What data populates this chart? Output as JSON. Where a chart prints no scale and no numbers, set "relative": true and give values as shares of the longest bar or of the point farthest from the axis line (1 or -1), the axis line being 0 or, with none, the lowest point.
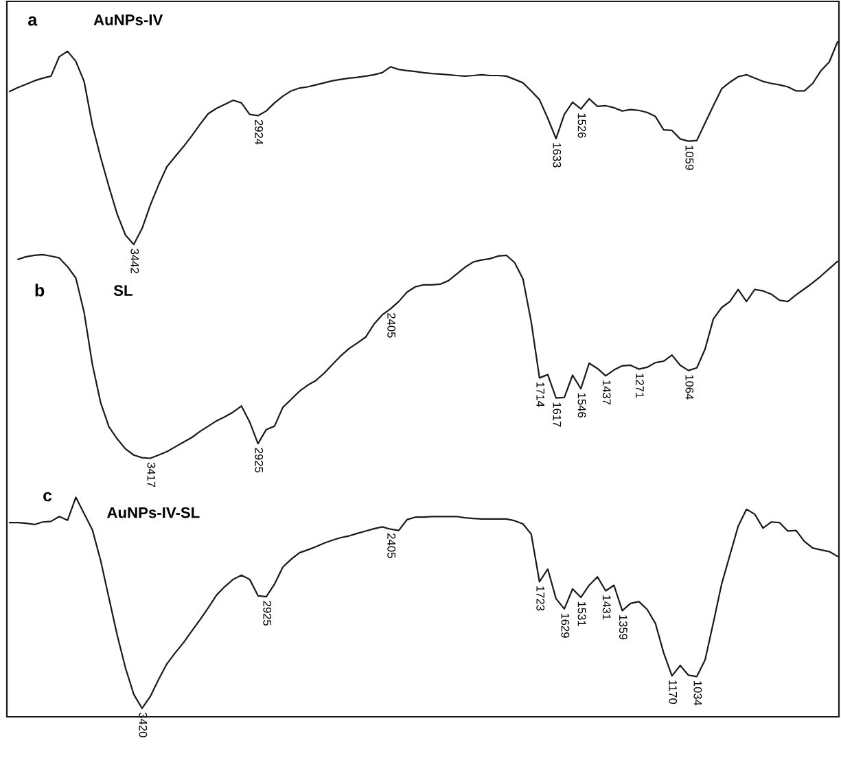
{
  "chart_data": [
    {
      "type": "line",
      "relative": true,
      "title": "AuNPs-IV",
      "tick_labels": false,
      "categories": [
        null,
        null,
        null,
        null,
        null,
        null,
        null,
        null,
        null,
        null,
        null,
        null,
        null,
        null,
        null,
        null,
        null,
        null,
        null,
        null,
        null,
        null,
        null,
        null,
        null,
        null,
        null,
        null,
        null,
        null,
        null,
        null,
        null,
        null,
        null,
        null,
        null,
        null,
        null,
        null,
        null,
        null,
        null,
        null,
        null,
        null,
        null,
        null,
        null,
        null,
        null,
        null,
        null,
        null,
        null,
        null,
        null,
        null,
        null,
        null,
        null,
        null,
        null,
        null,
        null,
        null,
        null,
        null,
        null,
        null,
        null,
        null,
        null,
        null,
        null,
        null,
        null,
        null,
        null,
        null,
        null,
        null,
        null,
        null,
        null,
        null,
        null,
        null,
        null,
        null,
        null,
        null,
        null,
        null,
        null,
        null,
        null,
        null,
        null,
        null,
        null
      ],
      "annotations": [
        "a",
        {
          "text": "3442",
          "y": 0
        },
        {
          "text": "2924",
          "y": 0.636
        },
        {
          "text": "1633",
          "y": 0.523
        },
        {
          "text": "1526",
          "y": 0.669
        },
        {
          "text": "1059",
          "y": 0.51
        }
      ],
      "series": [
        {
          "color": "#1a1a1a",
          "values": [
            0.755,
            0.775,
            0.791,
            0.808,
            0.821,
            0.831,
            0.927,
            0.954,
            0.904,
            0.805,
            0.589,
            0.43,
            0.285,
            0.149,
            0.046,
            0,
            0.079,
            0.195,
            0.295,
            0.384,
            0.434,
            0.483,
            0.536,
            0.593,
            0.646,
            0.672,
            0.692,
            0.712,
            0.699,
            0.642,
            0.636,
            0.659,
            0.699,
            0.732,
            0.758,
            0.772,
            0.778,
            0.788,
            0.798,
            0.808,
            0.815,
            0.821,
            0.825,
            0.831,
            0.838,
            0.848,
            0.877,
            0.864,
            0.858,
            0.854,
            0.848,
            0.844,
            0.841,
            0.838,
            0.834,
            0.831,
            0.834,
            0.838,
            0.834,
            0.834,
            0.831,
            0.815,
            0.798,
            0.758,
            0.715,
            0.623,
            0.523,
            0.642,
            0.702,
            0.669,
            0.719,
            0.682,
            0.685,
            0.675,
            0.659,
            0.666,
            0.662,
            0.652,
            0.632,
            0.566,
            0.563,
            0.521,
            0.51,
            0.513,
            0.599,
            0.685,
            0.768,
            0.801,
            0.828,
            0.838,
            0.821,
            0.805,
            0.795,
            0.788,
            0.778,
            0.758,
            0.758,
            0.795,
            0.858,
            0.901,
            1
          ]
        }
      ]
    },
    {
      "type": "line",
      "relative": true,
      "title": "SL",
      "tick_labels": false,
      "categories": [
        null,
        null,
        null,
        null,
        null,
        null,
        null,
        null,
        null,
        null,
        null,
        null,
        null,
        null,
        null,
        null,
        null,
        null,
        null,
        null,
        null,
        null,
        null,
        null,
        null,
        null,
        null,
        null,
        null,
        null,
        null,
        null,
        null,
        null,
        null,
        null,
        null,
        null,
        null,
        null,
        null,
        null,
        null,
        null,
        null,
        null,
        null,
        null,
        null,
        null,
        null,
        null,
        null,
        null,
        null,
        null,
        null,
        null,
        null,
        null,
        null,
        null,
        null,
        null,
        null,
        null,
        null,
        null,
        null,
        null,
        null,
        null,
        null,
        null,
        null,
        null,
        null,
        null,
        null,
        null,
        null,
        null,
        null,
        null,
        null,
        null,
        null,
        null,
        null,
        null,
        null,
        null,
        null,
        null,
        null,
        null,
        null,
        null,
        null,
        null,
        null
      ],
      "annotations": [
        "b",
        {
          "text": "3417",
          "y": 0
        },
        {
          "text": "2925",
          "y": 0.072
        },
        {
          "text": "2405",
          "y": 0.734
        },
        {
          "text": "1714",
          "y": 0.395
        },
        {
          "text": "1617",
          "y": 0.296
        },
        {
          "text": "1546",
          "y": 0.342
        },
        {
          "text": "1437",
          "y": 0.405
        },
        {
          "text": "1271",
          "y": 0.438
        },
        {
          "text": "1064",
          "y": 0.431
        }
      ],
      "series": [
        {
          "color": "#1a1a1a",
          "values": [
            null,
            0.977,
            0.99,
            0.997,
            1,
            0.993,
            0.984,
            0.941,
            0.885,
            0.717,
            0.461,
            0.273,
            0.155,
            0.095,
            0.046,
            0.016,
            0.003,
            0,
            0.016,
            0.033,
            0.056,
            0.079,
            0.102,
            0.132,
            0.158,
            0.184,
            0.204,
            0.227,
            0.257,
            0.178,
            0.072,
            0.141,
            0.158,
            0.25,
            0.289,
            0.329,
            0.359,
            0.382,
            0.418,
            0.461,
            0.503,
            0.539,
            0.566,
            0.595,
            0.658,
            0.704,
            0.734,
            0.77,
            0.816,
            0.842,
            0.852,
            0.852,
            0.855,
            0.872,
            0.905,
            0.938,
            0.964,
            0.974,
            0.98,
            0.993,
            0.997,
            0.961,
            0.882,
            0.671,
            0.395,
            0.411,
            0.296,
            0.299,
            0.408,
            0.342,
            0.467,
            0.441,
            0.405,
            0.434,
            0.454,
            0.457,
            0.438,
            0.447,
            0.47,
            0.477,
            0.507,
            0.457,
            0.431,
            0.444,
            0.536,
            0.684,
            0.74,
            0.77,
            0.829,
            0.77,
            0.829,
            0.822,
            0.806,
            0.776,
            0.77,
            0.803,
            0.832,
            0.862,
            0.895,
            0.931,
            0.967
          ]
        }
      ]
    },
    {
      "type": "line",
      "relative": true,
      "title": "AuNPs-IV-SL",
      "tick_labels": false,
      "categories": [
        null,
        null,
        null,
        null,
        null,
        null,
        null,
        null,
        null,
        null,
        null,
        null,
        null,
        null,
        null,
        null,
        null,
        null,
        null,
        null,
        null,
        null,
        null,
        null,
        null,
        null,
        null,
        null,
        null,
        null,
        null,
        null,
        null,
        null,
        null,
        null,
        null,
        null,
        null,
        null,
        null,
        null,
        null,
        null,
        null,
        null,
        null,
        null,
        null,
        null,
        null,
        null,
        null,
        null,
        null,
        null,
        null,
        null,
        null,
        null,
        null,
        null,
        null,
        null,
        null,
        null,
        null,
        null,
        null,
        null,
        null,
        null,
        null,
        null,
        null,
        null,
        null,
        null,
        null,
        null,
        null,
        null,
        null,
        null,
        null,
        null,
        null,
        null,
        null,
        null,
        null,
        null,
        null,
        null,
        null,
        null,
        null,
        null,
        null,
        null,
        null
      ],
      "annotations": [
        "c",
        {
          "text": "3420",
          "y": 0
        },
        {
          "text": "2925",
          "y": 0.529
        },
        {
          "text": "2405",
          "y": 0.849
        },
        {
          "text": "1723",
          "y": 0.6
        },
        {
          "text": "1629",
          "y": 0.471
        },
        {
          "text": "1531",
          "y": 0.526
        },
        {
          "text": "1431",
          "y": 0.557
        },
        {
          "text": "1359",
          "y": 0.463
        },
        {
          "text": "1170",
          "y": 0.154
        },
        {
          "text": "1034",
          "y": 0.151
        }
      ],
      "series": [
        {
          "color": "#1a1a1a",
          "values": [
            0.88,
            0.88,
            0.877,
            0.871,
            0.883,
            0.886,
            0.909,
            0.891,
            1,
            0.923,
            0.846,
            0.7,
            0.523,
            0.346,
            0.191,
            0.066,
            0,
            0.057,
            0.137,
            0.211,
            0.263,
            0.311,
            0.366,
            0.42,
            0.477,
            0.537,
            0.577,
            0.611,
            0.631,
            0.611,
            0.534,
            0.529,
            0.589,
            0.669,
            0.706,
            0.737,
            0.751,
            0.766,
            0.783,
            0.797,
            0.809,
            0.817,
            0.829,
            0.84,
            0.851,
            0.86,
            0.849,
            0.843,
            0.894,
            0.906,
            0.906,
            0.909,
            0.909,
            0.909,
            0.909,
            0.903,
            0.9,
            0.897,
            0.897,
            0.897,
            0.897,
            0.889,
            0.874,
            0.826,
            0.6,
            0.66,
            0.52,
            0.471,
            0.566,
            0.526,
            0.583,
            0.623,
            0.557,
            0.583,
            0.463,
            0.497,
            0.506,
            0.469,
            0.403,
            0.263,
            0.154,
            0.203,
            0.157,
            0.151,
            0.229,
            0.406,
            0.589,
            0.726,
            0.863,
            0.943,
            0.92,
            0.854,
            0.883,
            0.88,
            0.84,
            0.843,
            0.791,
            0.76,
            0.751,
            0.743,
            0.72
          ]
        }
      ]
    }
  ]
}
